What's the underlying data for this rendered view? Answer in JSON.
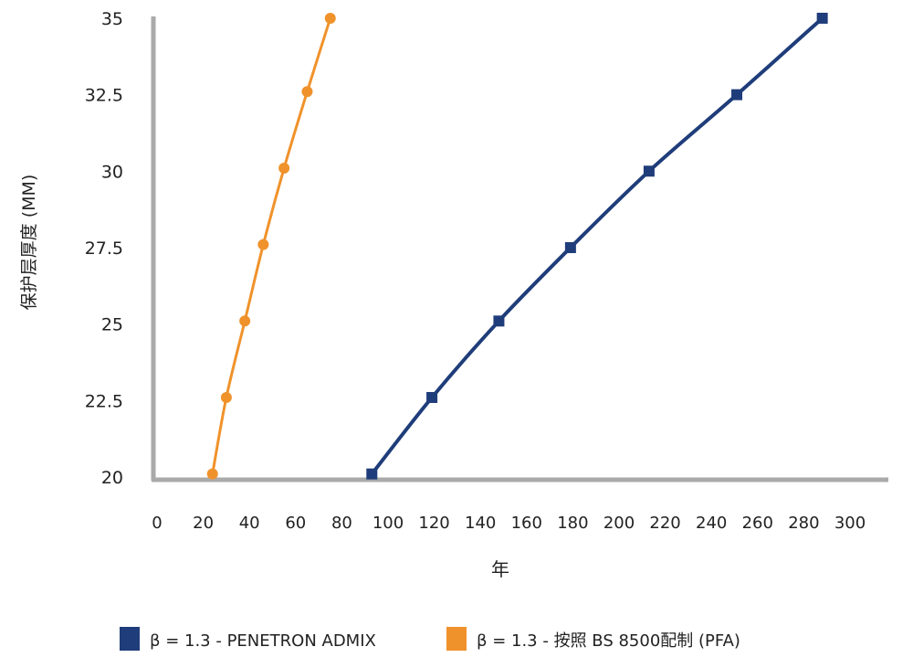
{
  "chart_data": {
    "type": "line",
    "title": "",
    "xlabel": "年",
    "ylabel": "保护层厚度 (MM)",
    "xlim": [
      0,
      316
    ],
    "ylim": [
      20,
      35
    ],
    "x_ticks": [
      "0",
      "20",
      "40",
      "60",
      "80",
      "100",
      "120",
      "140",
      "160",
      "180",
      "200",
      "220",
      "240",
      "260",
      "280",
      "300"
    ],
    "y_ticks": [
      "20",
      "22.5",
      "25",
      "27.5",
      "30",
      "32.5",
      "35"
    ],
    "grid": false,
    "legend_position": "bottom",
    "series": [
      {
        "name": "β = 1.3 - PENETRON ADMIX",
        "color": "#1f3d7a",
        "marker": "square",
        "x": [
          93,
          119,
          148,
          179,
          213,
          251,
          288
        ],
        "y": [
          20.1,
          22.6,
          25.1,
          27.5,
          30,
          32.5,
          35
        ]
      },
      {
        "name": "β = 1.3 - 按照 BS 8500配制 (PFA)",
        "color": "#f0922b",
        "marker": "circle",
        "x": [
          24,
          30,
          38,
          46,
          55,
          65,
          75
        ],
        "y": [
          20.1,
          22.6,
          25.1,
          27.6,
          30.1,
          32.6,
          35
        ]
      }
    ]
  }
}
